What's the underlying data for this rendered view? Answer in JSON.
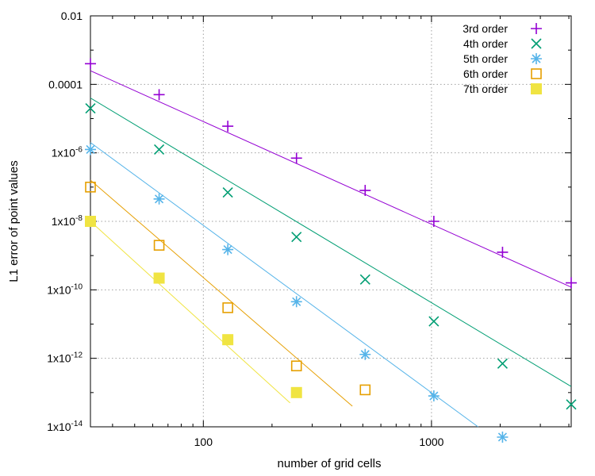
{
  "chart_data": {
    "type": "scatter",
    "title": "",
    "xlabel": "number of grid cells",
    "ylabel": "L1 error of point values",
    "xscale": "log",
    "yscale": "log",
    "xlim": [
      32,
      4096
    ],
    "ylim": [
      1e-14,
      0.01
    ],
    "x_ticks": [
      {
        "value": 100,
        "label": "100"
      },
      {
        "value": 1000,
        "label": "1000"
      }
    ],
    "y_ticks": [
      {
        "value": 0.01,
        "base": "0.01",
        "exp": ""
      },
      {
        "value": 0.0001,
        "base": "0.0001",
        "exp": ""
      },
      {
        "value": 1e-06,
        "base": "1x10",
        "exp": "-6"
      },
      {
        "value": 1e-08,
        "base": "1x10",
        "exp": "-8"
      },
      {
        "value": 1e-10,
        "base": "1x10",
        "exp": "-10"
      },
      {
        "value": 1e-12,
        "base": "1x10",
        "exp": "-12"
      },
      {
        "value": 1e-14,
        "base": "1x10",
        "exp": "-14"
      }
    ],
    "grid": true,
    "legend_position": "top-right",
    "series": [
      {
        "name": "3rd order",
        "color": "#9400d3",
        "marker": "plus",
        "points": [
          [
            32,
            0.0004
          ],
          [
            64,
            5e-05
          ],
          [
            128,
            6e-06
          ],
          [
            256,
            7e-07
          ],
          [
            512,
            8e-08
          ],
          [
            1024,
            1e-08
          ],
          [
            2048,
            1.25e-09
          ],
          [
            4096,
            1.6e-10
          ]
        ],
        "fit": [
          [
            32,
            0.00025
          ],
          [
            4096,
            1.2e-10
          ]
        ]
      },
      {
        "name": "4th order",
        "color": "#009e73",
        "marker": "cross",
        "points": [
          [
            32,
            2e-05
          ],
          [
            64,
            1.25e-06
          ],
          [
            128,
            7e-08
          ],
          [
            256,
            3.5e-09
          ],
          [
            512,
            2e-10
          ],
          [
            1024,
            1.2e-11
          ],
          [
            2048,
            7e-13
          ],
          [
            4096,
            4.5e-14
          ]
        ],
        "fit": [
          [
            32,
            4e-05
          ],
          [
            4096,
            1.5e-13
          ]
        ]
      },
      {
        "name": "5th order",
        "color": "#56b4e9",
        "marker": "star",
        "points": [
          [
            32,
            1.25e-06
          ],
          [
            64,
            4.5e-08
          ],
          [
            128,
            1.5e-09
          ],
          [
            256,
            4.5e-11
          ],
          [
            512,
            1.3e-12
          ],
          [
            1024,
            8e-14
          ],
          [
            2048,
            5e-15
          ]
        ],
        "fit": [
          [
            32,
            2e-06
          ],
          [
            1600,
            1e-14
          ]
        ]
      },
      {
        "name": "6th order",
        "color": "#e69f00",
        "marker": "open-square",
        "points": [
          [
            32,
            1e-07
          ],
          [
            64,
            2e-09
          ],
          [
            128,
            3e-11
          ],
          [
            256,
            6e-13
          ],
          [
            512,
            1.2e-13
          ]
        ],
        "fit": [
          [
            32,
            1.6e-07
          ],
          [
            450,
            4e-14
          ]
        ]
      },
      {
        "name": "7th order",
        "color": "#f0e442",
        "marker": "filled-square",
        "points": [
          [
            32,
            1e-08
          ],
          [
            64,
            2.2e-10
          ],
          [
            128,
            3.5e-12
          ],
          [
            256,
            1e-13
          ]
        ],
        "fit": [
          [
            32,
            1e-08
          ],
          [
            240,
            5e-14
          ]
        ]
      }
    ]
  }
}
